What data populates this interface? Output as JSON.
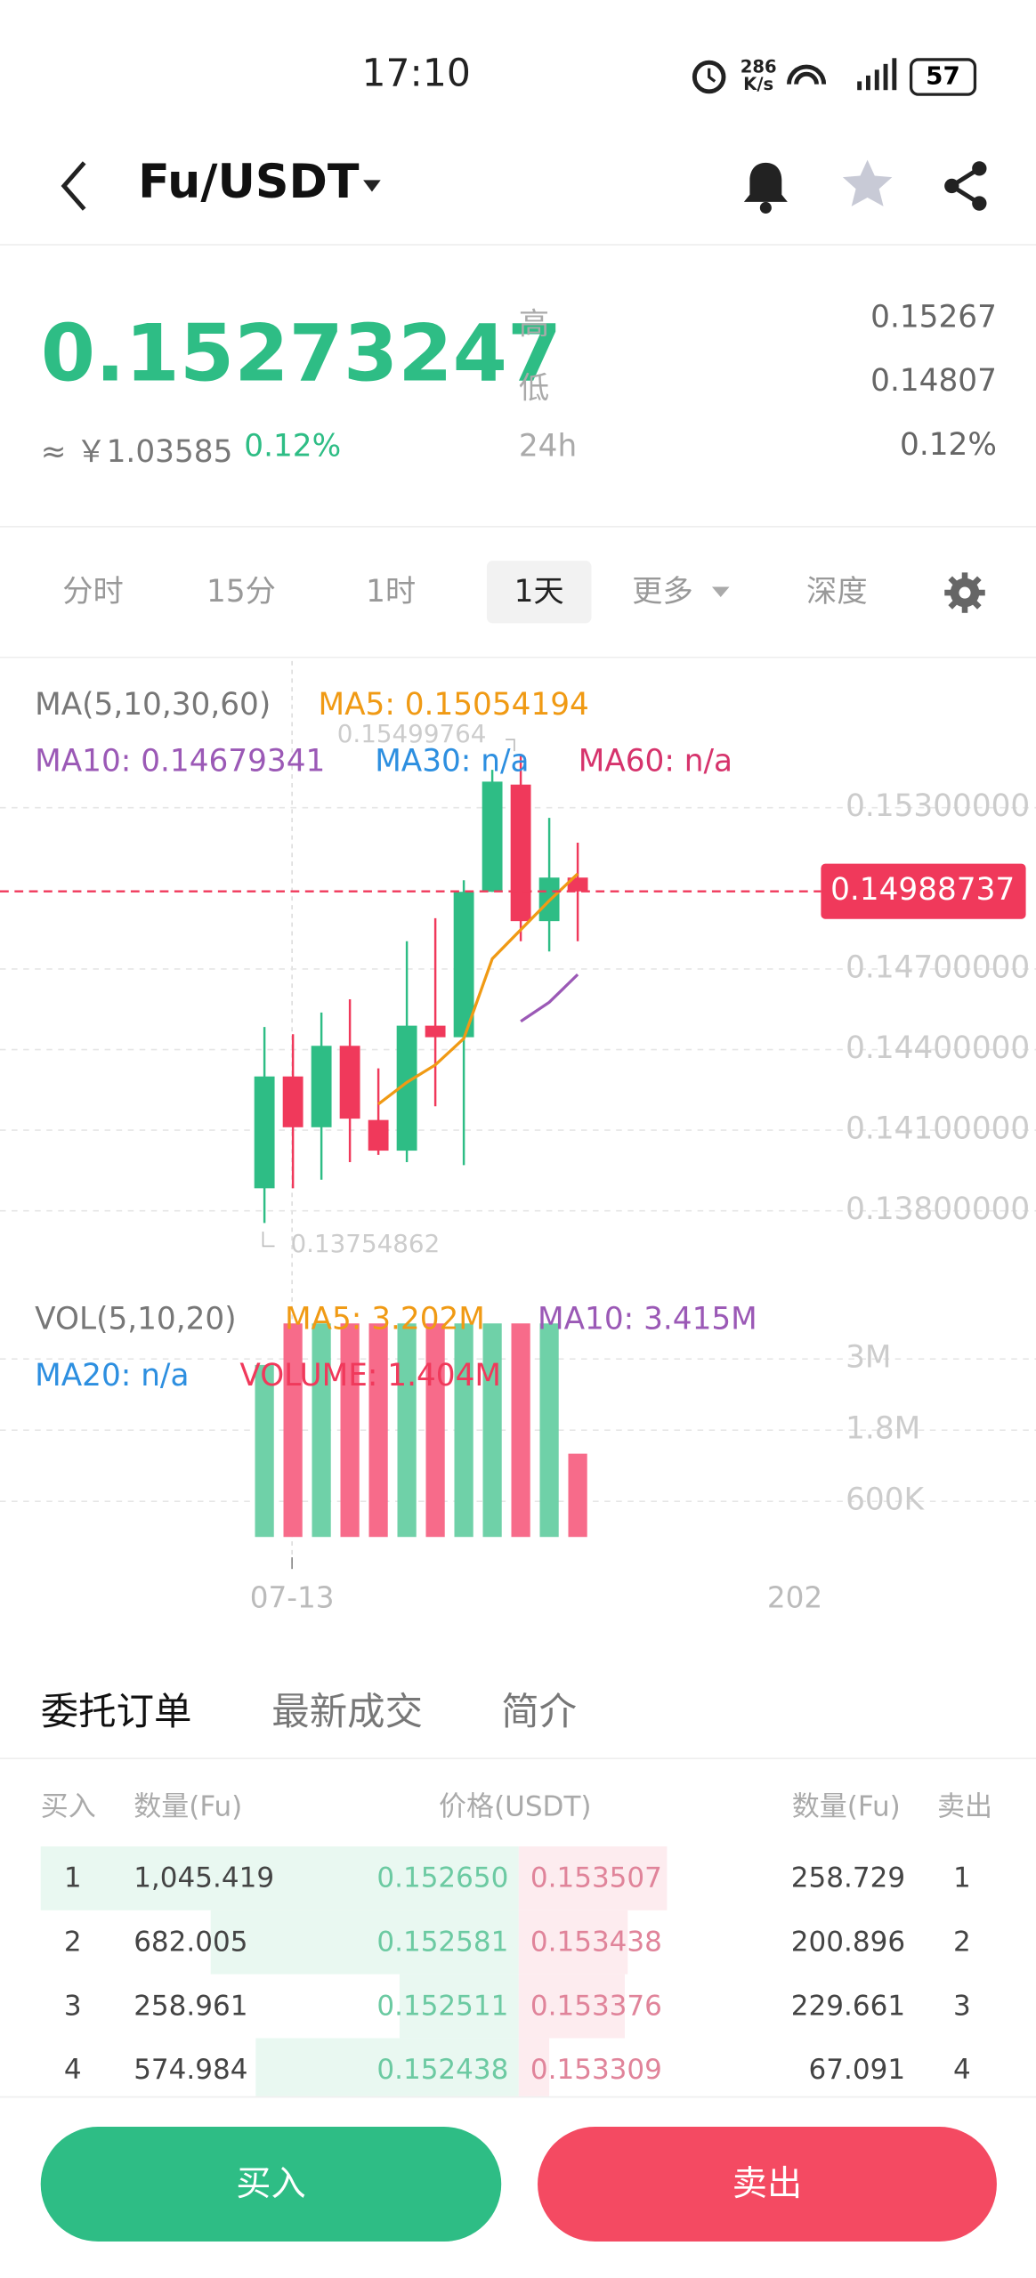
{
  "status_bar": {
    "time": "17:10",
    "net_speed": "286 K/s",
    "battery": "57"
  },
  "header": {
    "pair": "Fu/USDT"
  },
  "ticker": {
    "price": "0.15273247",
    "approx": "≈ ￥1.03585",
    "change": "0.12%",
    "stats": [
      {
        "label": "高",
        "value": "0.15267"
      },
      {
        "label": "低",
        "value": "0.14807"
      },
      {
        "label": "24h",
        "value": "0.12%"
      }
    ]
  },
  "intervals": {
    "items": [
      "分时",
      "15分",
      "1时",
      "1天",
      "更多",
      "深度"
    ],
    "active_index": 3
  },
  "chart_data": [
    {
      "type": "candlestick",
      "title": "MA(5,10,30,60)",
      "up_color": "#2ebd85",
      "down_color": "#f0395b",
      "open": [
        0.13884,
        0.143,
        0.14111,
        0.14414,
        0.14138,
        0.14024,
        0.14489,
        0.14446,
        0.14987,
        0.15386,
        0.14878,
        0.1504
      ],
      "high": [
        0.14484,
        0.14457,
        0.14538,
        0.14587,
        0.1433,
        0.14803,
        0.14889,
        0.1503,
        0.15441,
        0.15499764,
        0.15262,
        0.1517
      ],
      "low": [
        0.13754862,
        0.13884,
        0.13916,
        0.13981,
        0.14008,
        0.13981,
        0.14189,
        0.1397,
        0.14987,
        0.14803,
        0.14765,
        0.14803
      ],
      "close": [
        0.143,
        0.14111,
        0.14414,
        0.14143,
        0.14024,
        0.14489,
        0.14446,
        0.14987,
        0.15397,
        0.14878,
        0.1504,
        0.14988737
      ],
      "series": [
        {
          "name": "MA5: 0.15054194",
          "color": "#f09a14",
          "values": [
            null,
            null,
            null,
            null,
            0.14197,
            0.14278,
            0.14343,
            0.14441,
            0.14738,
            0.14846,
            0.14954,
            0.15054194
          ]
        },
        {
          "name": "MA10: 0.14679341",
          "color": "#9b59b6",
          "values": [
            null,
            null,
            null,
            null,
            null,
            null,
            null,
            null,
            null,
            0.14505,
            0.14576,
            0.14679341
          ]
        },
        {
          "name": "MA30: n/a",
          "color": "#2d8fe0",
          "values": []
        },
        {
          "name": "MA60: n/a",
          "color": "#d6336c",
          "values": []
        }
      ],
      "last_price": 0.14988737,
      "max_label": 0.15499764,
      "min_label": 0.13754862,
      "ylim": [
        0.137,
        0.155
      ],
      "yticks": [
        {
          "value": 0.153,
          "label": "0.15300000"
        },
        {
          "value": 0.147,
          "label": "0.14700000"
        },
        {
          "value": 0.144,
          "label": "0.14400000"
        },
        {
          "value": 0.141,
          "label": "0.14100000"
        },
        {
          "value": 0.138,
          "label": "0.13800000"
        }
      ],
      "x_labels": [
        "07-13",
        "202"
      ]
    },
    {
      "type": "bar",
      "title": "VOL(5,10,20)",
      "values": [
        2900000,
        3600000,
        3600000,
        3600000,
        3600000,
        3600000,
        3600000,
        3600000,
        3600000,
        3600000,
        3600000,
        1404000
      ],
      "legend": [
        {
          "name": "MA5: 3.202M",
          "color": "#f09a14"
        },
        {
          "name": "MA10: 3.415M",
          "color": "#9b59b6"
        },
        {
          "name": "MA20: n/a",
          "color": "#2d8fe0"
        },
        {
          "name": "VOLUME: 1.404M",
          "color": "#f0395b"
        }
      ],
      "ylim": [
        0,
        3600000
      ],
      "yticks": [
        {
          "value": 3000000,
          "label": "3M"
        },
        {
          "value": 1800000,
          "label": "1.8M"
        },
        {
          "value": 600000,
          "label": "600K"
        }
      ]
    }
  ],
  "order_tabs": [
    "委托订单",
    "最新成交",
    "简介"
  ],
  "order_book": {
    "headers": [
      "买入",
      "数量(Fu)",
      "价格(USDT)",
      "数量(Fu)",
      "卖出"
    ],
    "rows": [
      [
        "1",
        "1,045.419",
        "0.152650",
        "0.153507",
        "258.729",
        "1"
      ],
      [
        "2",
        "682.005",
        "0.152581",
        "0.153438",
        "200.896",
        "2"
      ],
      [
        "3",
        "258.961",
        "0.152511",
        "0.153376",
        "229.661",
        "3"
      ],
      [
        "4",
        "574.984",
        "0.152438",
        "0.153309",
        "67.091",
        "4"
      ]
    ]
  },
  "buttons": {
    "buy": "买入",
    "sell": "卖出"
  }
}
